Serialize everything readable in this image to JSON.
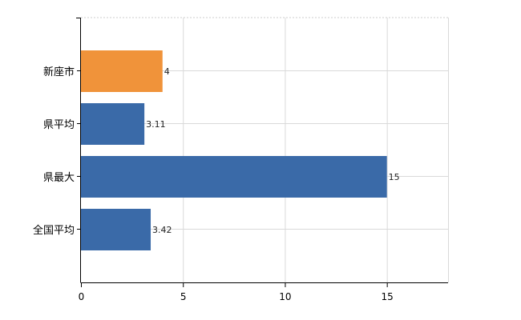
{
  "chart_data": {
    "type": "bar",
    "orientation": "horizontal",
    "categories": [
      "新座市",
      "県平均",
      "県最大",
      "全国平均"
    ],
    "values": [
      4,
      3.11,
      15,
      3.42
    ],
    "value_labels": [
      "4",
      "3.11",
      "15",
      "3.42"
    ],
    "bar_colors": [
      "#f0933a",
      "#3a6aa8",
      "#3a6aa8",
      "#3a6aa8"
    ],
    "xlim": [
      0,
      18
    ],
    "x_ticks": [
      0,
      5,
      10,
      15
    ],
    "x_tick_labels": [
      "0",
      "5",
      "10",
      "15"
    ],
    "grid": true,
    "title": "",
    "xlabel": "",
    "ylabel": ""
  }
}
